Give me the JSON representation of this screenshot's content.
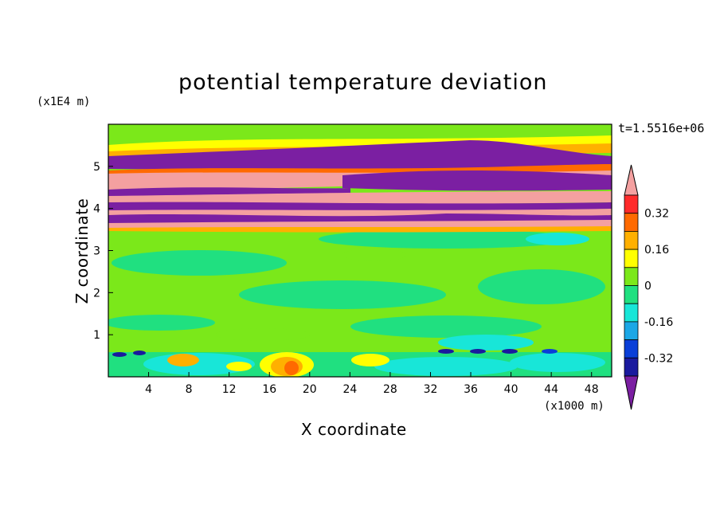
{
  "chart_data": {
    "type": "heatmap",
    "title": "potential temperature deviation",
    "xlabel": "X coordinate",
    "ylabel": "Z coordinate",
    "x_unit": "(x1000 m)",
    "y_unit": "(x1E4 m)",
    "time_label": "t=1.5516e+06",
    "xlim": [
      0,
      50
    ],
    "ylim": [
      0,
      6
    ],
    "x_ticks": [
      4,
      8,
      12,
      16,
      20,
      24,
      28,
      32,
      36,
      40,
      44,
      48
    ],
    "y_ticks": [
      1,
      2,
      3,
      4,
      5
    ],
    "colorbar": {
      "extend": "both",
      "levels": [
        -0.4,
        -0.32,
        -0.24,
        -0.16,
        -0.08,
        0,
        0.08,
        0.16,
        0.24,
        0.32,
        0.4
      ],
      "labels": [
        "0.32",
        "0.16",
        "0",
        "-0.16",
        "-0.32"
      ],
      "colors": [
        "#7b1fa2",
        "#1a1a9e",
        "#0a3fd8",
        "#1ca7e6",
        "#18e6d8",
        "#20e080",
        "#7be81a",
        "#ffff00",
        "#ffb000",
        "#ff6a00",
        "#ff2a2a",
        "#f4a0a0"
      ]
    },
    "bands": [
      {
        "z_bottom": 5.6,
        "z_top": 6.0,
        "value": 0.1
      },
      {
        "z_bottom": 5.1,
        "z_top": 5.5,
        "value": -0.45
      },
      {
        "z_bottom": 4.6,
        "z_top": 5.0,
        "value": 0.45
      },
      {
        "z_bottom": 4.35,
        "z_top": 4.6,
        "value": -0.45
      },
      {
        "z_bottom": 3.95,
        "z_top": 4.35,
        "value": 0.45
      },
      {
        "z_bottom": 3.65,
        "z_top": 3.95,
        "value": -0.45
      },
      {
        "z_bottom": 0.6,
        "z_top": 3.6,
        "value": 0.0
      },
      {
        "z_bottom": 0.0,
        "z_top": 0.6,
        "value": -0.05
      }
    ]
  }
}
